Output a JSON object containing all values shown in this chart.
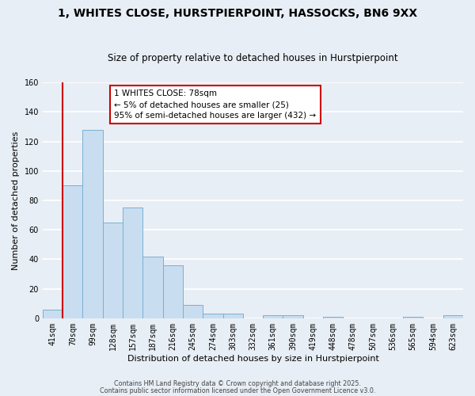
{
  "title": "1, WHITES CLOSE, HURSTPIERPOINT, HASSOCKS, BN6 9XX",
  "subtitle": "Size of property relative to detached houses in Hurstpierpoint",
  "xlabel": "Distribution of detached houses by size in Hurstpierpoint",
  "ylabel": "Number of detached properties",
  "categories": [
    "41sqm",
    "70sqm",
    "99sqm",
    "128sqm",
    "157sqm",
    "187sqm",
    "216sqm",
    "245sqm",
    "274sqm",
    "303sqm",
    "332sqm",
    "361sqm",
    "390sqm",
    "419sqm",
    "448sqm",
    "478sqm",
    "507sqm",
    "536sqm",
    "565sqm",
    "594sqm",
    "623sqm"
  ],
  "values": [
    6,
    90,
    128,
    65,
    75,
    42,
    36,
    9,
    3,
    3,
    0,
    2,
    2,
    0,
    1,
    0,
    0,
    0,
    1,
    0,
    2
  ],
  "bar_color": "#c8ddf0",
  "bar_edge_color": "#7aafd4",
  "vline_color": "#cc0000",
  "vline_x_index": 1,
  "ylim": [
    0,
    160
  ],
  "yticks": [
    0,
    20,
    40,
    60,
    80,
    100,
    120,
    140,
    160
  ],
  "annotation_text": "1 WHITES CLOSE: 78sqm\n← 5% of detached houses are smaller (25)\n95% of semi-detached houses are larger (432) →",
  "annotation_box_color": "#ffffff",
  "annotation_box_edge": "#cc0000",
  "footer1": "Contains HM Land Registry data © Crown copyright and database right 2025.",
  "footer2": "Contains public sector information licensed under the Open Government Licence v3.0.",
  "background_color": "#e8eef5",
  "plot_bg_color": "#e8eef5",
  "grid_color": "#ffffff",
  "title_fontsize": 10,
  "subtitle_fontsize": 8.5,
  "tick_fontsize": 7,
  "label_fontsize": 8,
  "footer_fontsize": 5.8,
  "ann_fontsize": 7.5
}
